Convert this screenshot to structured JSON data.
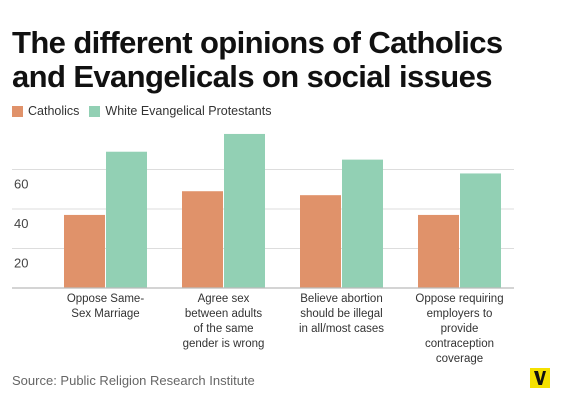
{
  "title": "The different opinions of Catholics and Evangelicals on social issues",
  "source": "Source: Public Religion Research Institute",
  "colors": {
    "catholics": "#e0926a",
    "evangelicals": "#92d0b4",
    "grid": "#dddddd",
    "axis": "#bbbbbb"
  },
  "logo": {
    "icon": "vox-logo-icon"
  },
  "chart_data": {
    "type": "bar",
    "categories": [
      [
        "Oppose Same-",
        "Sex Marriage"
      ],
      [
        "Agree sex",
        "between adults",
        "of the same",
        "gender is wrong"
      ],
      [
        "Believe abortion",
        "should be illegal",
        "in all/most cases"
      ],
      [
        "Oppose requiring",
        "employers to",
        "provide",
        "contraception",
        "coverage"
      ]
    ],
    "series": [
      {
        "name": "Catholics",
        "values": [
          37,
          49,
          47,
          37
        ]
      },
      {
        "name": "White Evangelical Protestants",
        "values": [
          69,
          78,
          65,
          58
        ]
      }
    ],
    "yticks": [
      20,
      40,
      60
    ],
    "ylim": [
      0,
      80
    ],
    "grid": true,
    "legend": "top-left"
  }
}
